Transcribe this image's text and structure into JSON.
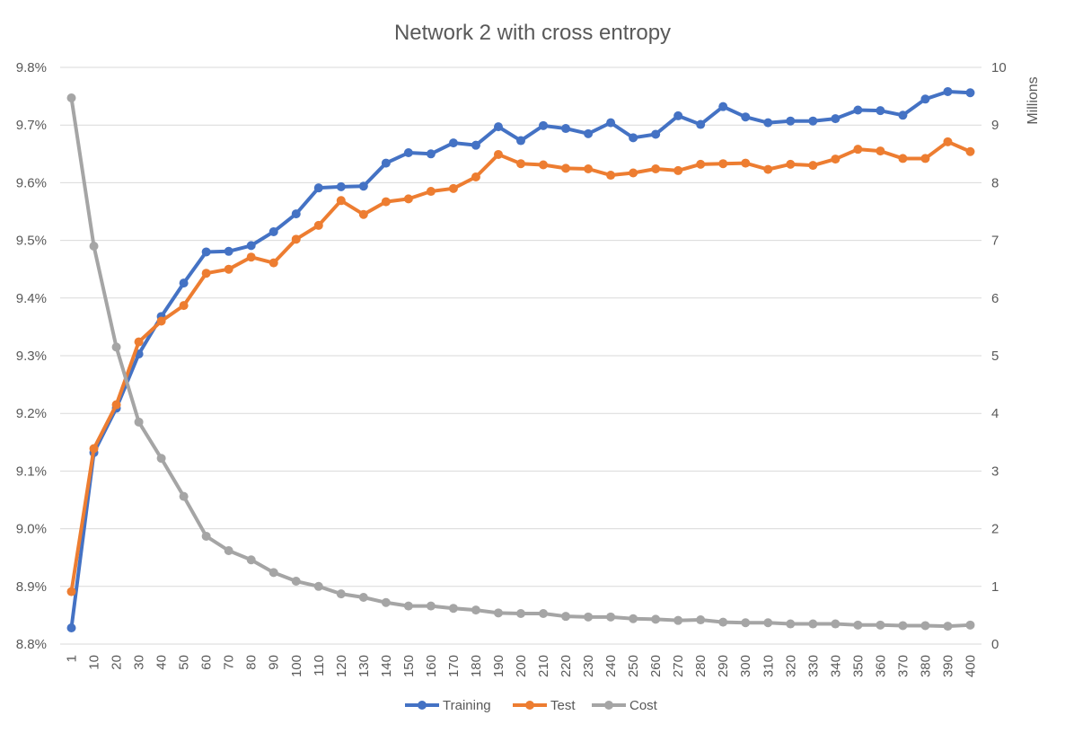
{
  "chart_data": {
    "type": "line",
    "title": "Network 2 with cross entropy",
    "x": [
      "1",
      "10",
      "20",
      "30",
      "40",
      "50",
      "60",
      "70",
      "80",
      "90",
      "100",
      "110",
      "120",
      "130",
      "140",
      "150",
      "160",
      "170",
      "180",
      "190",
      "200",
      "210",
      "220",
      "230",
      "240",
      "250",
      "260",
      "270",
      "280",
      "290",
      "300",
      "310",
      "320",
      "330",
      "340",
      "350",
      "360",
      "370",
      "380",
      "390",
      "400"
    ],
    "y_left": {
      "ylim": [
        8.8,
        9.8
      ],
      "ticks": [
        "9.8%",
        "9.7%",
        "9.6%",
        "9.5%",
        "9.4%",
        "9.3%",
        "9.2%",
        "9.1%",
        "9.0%",
        "8.9%",
        "8.8%"
      ]
    },
    "y_right": {
      "label": "Millions",
      "ylim": [
        0,
        10
      ],
      "ticks": [
        "10",
        "9",
        "8",
        "7",
        "6",
        "5",
        "4",
        "3",
        "2",
        "1",
        "0"
      ]
    },
    "series": [
      {
        "name": "Training",
        "axis": "left",
        "color": "#4472C4",
        "values": [
          8.828,
          9.132,
          9.209,
          9.303,
          9.368,
          9.426,
          9.48,
          9.481,
          9.491,
          9.515,
          9.546,
          9.591,
          9.593,
          9.594,
          9.634,
          9.652,
          9.65,
          9.669,
          9.665,
          9.697,
          9.673,
          9.699,
          9.694,
          9.685,
          9.704,
          9.678,
          9.684,
          9.716,
          9.701,
          9.732,
          9.714,
          9.704,
          9.707,
          9.707,
          9.711,
          9.726,
          9.725,
          9.717,
          9.745,
          9.758,
          9.756
        ]
      },
      {
        "name": "Test",
        "axis": "left",
        "color": "#ED7D31",
        "values": [
          8.891,
          9.139,
          9.215,
          9.324,
          9.36,
          9.387,
          9.443,
          9.45,
          9.471,
          9.461,
          9.502,
          9.526,
          9.569,
          9.545,
          9.567,
          9.572,
          9.585,
          9.59,
          9.61,
          9.649,
          9.633,
          9.631,
          9.625,
          9.624,
          9.613,
          9.617,
          9.624,
          9.621,
          9.632,
          9.633,
          9.634,
          9.623,
          9.632,
          9.63,
          9.641,
          9.658,
          9.655,
          9.642,
          9.642,
          9.671,
          9.654
        ]
      },
      {
        "name": "Cost",
        "axis": "right",
        "color": "#A5A5A5",
        "values": [
          9.47,
          6.9,
          5.15,
          3.85,
          3.22,
          2.56,
          1.87,
          1.62,
          1.46,
          1.24,
          1.09,
          1.0,
          0.87,
          0.81,
          0.72,
          0.66,
          0.66,
          0.62,
          0.59,
          0.54,
          0.53,
          0.53,
          0.48,
          0.47,
          0.47,
          0.44,
          0.43,
          0.41,
          0.42,
          0.38,
          0.37,
          0.37,
          0.35,
          0.35,
          0.35,
          0.33,
          0.33,
          0.32,
          0.32,
          0.31,
          0.33
        ]
      }
    ],
    "grid": true,
    "legend_position": "bottom"
  }
}
